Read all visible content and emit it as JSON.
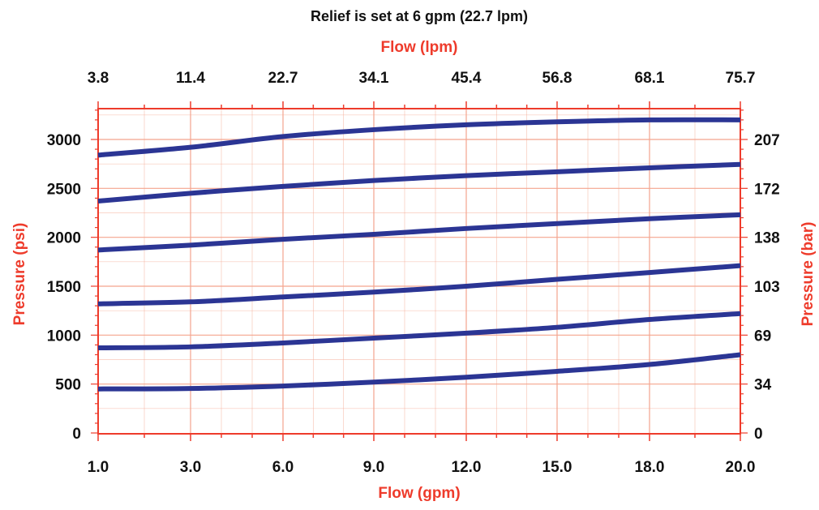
{
  "chart_data": {
    "type": "line",
    "title": "Relief is set at 6 gpm (22.7 lpm)",
    "xlabel": "Flow (gpm)",
    "x2label": "Flow (lpm)",
    "ylabel": "Pressure (psi)",
    "y2label": "Pressure (bar)",
    "xlim": [
      1.0,
      20.0
    ],
    "ylim": [
      0,
      3300
    ],
    "grid": true,
    "x_ticks": [
      1.0,
      3.0,
      6.0,
      9.0,
      12.0,
      15.0,
      18.0,
      20.0
    ],
    "x_tick_labels": [
      "1.0",
      "3.0",
      "6.0",
      "9.0",
      "12.0",
      "15.0",
      "18.0",
      "20.0"
    ],
    "x2_tick_labels": [
      "3.8",
      "11.4",
      "22.7",
      "34.1",
      "45.4",
      "56.8",
      "68.1",
      "75.7"
    ],
    "y_ticks": [
      0,
      500,
      1000,
      1500,
      2000,
      2500,
      3000
    ],
    "y_tick_labels": [
      "0",
      "500",
      "1000",
      "1500",
      "2000",
      "2500",
      "3000"
    ],
    "y2_tick_labels": [
      "0",
      "34",
      "69",
      "103",
      "138",
      "172",
      "207"
    ],
    "x": [
      1.0,
      3.0,
      6.0,
      9.0,
      12.0,
      15.0,
      18.0,
      20.0
    ],
    "series": [
      {
        "values": [
          450,
          455,
          480,
          520,
          570,
          630,
          700,
          800
        ]
      },
      {
        "values": [
          870,
          880,
          920,
          970,
          1020,
          1080,
          1160,
          1220
        ]
      },
      {
        "values": [
          1320,
          1340,
          1390,
          1440,
          1500,
          1570,
          1640,
          1710
        ]
      },
      {
        "values": [
          1870,
          1920,
          1980,
          2030,
          2090,
          2140,
          2190,
          2230
        ]
      },
      {
        "values": [
          2370,
          2450,
          2520,
          2580,
          2630,
          2670,
          2710,
          2745
        ]
      },
      {
        "values": [
          2840,
          2920,
          3030,
          3100,
          3150,
          3180,
          3200,
          3200
        ]
      }
    ],
    "colors": {
      "line": "#2b3594",
      "grid": "#f4a48e",
      "axis": "#ee3b2b",
      "label": "#ee3b2b",
      "tick_text": "#111111"
    }
  }
}
